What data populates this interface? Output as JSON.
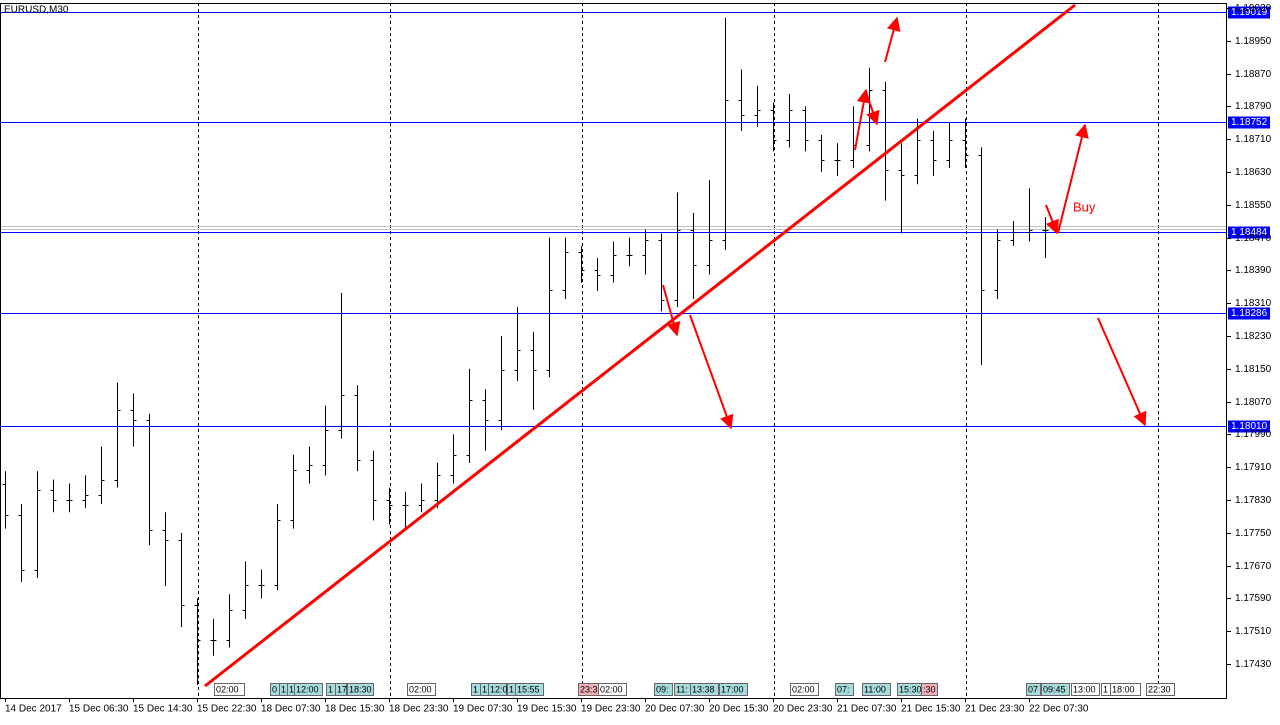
{
  "chart_data": {
    "type": "ohlc",
    "title": "EURUSD,M30",
    "categories": [
      "14 Dec 2017",
      null,
      null,
      null,
      "15 Dec 06:30",
      null,
      null,
      null,
      "15 Dec 14:30",
      null,
      null,
      null,
      "15 Dec 22:30",
      null,
      null,
      null,
      "18 Dec 07:30",
      null,
      null,
      null,
      "18 Dec 15:30",
      null,
      null,
      null,
      "18 Dec 23:30",
      null,
      null,
      null,
      "19 Dec 07:30",
      null,
      null,
      null,
      "19 Dec 15:30",
      null,
      null,
      null,
      "19 Dec 23:30",
      null,
      null,
      null,
      "20 Dec 07:30",
      null,
      null,
      null,
      "20 Dec 15:30",
      null,
      null,
      null,
      "20 Dec 23:30",
      null,
      null,
      null,
      "21 Dec 07:30",
      null,
      null,
      null,
      "21 Dec 15:30",
      null,
      null,
      null,
      "21 Dec 23:30",
      null,
      null,
      null,
      "22 Dec 07:30",
      null
    ],
    "open": [
      1.1787,
      1.17793,
      1.17659,
      1.17854,
      1.1783,
      1.1783,
      1.17842,
      1.17879,
      1.1805,
      1.18025,
      1.17757,
      1.17733,
      1.17574,
      1.17489,
      1.17489,
      1.17562,
      1.17623,
      1.17623,
      1.17781,
      1.17903,
      1.17915,
      1.18001,
      1.18086,
      1.17928,
      1.1783,
      1.17818,
      1.17818,
      1.1783,
      1.17891,
      1.1794,
      1.18074,
      1.18025,
      1.18147,
      1.18196,
      1.18147,
      1.18342,
      1.18435,
      1.18391,
      1.18379,
      1.18428,
      1.18428,
      1.18464,
      1.18318,
      1.18489,
      1.18403,
      1.18464,
      1.18806,
      1.18769,
      1.18781,
      1.18708,
      1.18781,
      1.18708,
      1.18659,
      1.18659,
      1.18696,
      1.1883,
      1.18635,
      1.18623,
      1.18708,
      1.18659,
      1.18708,
      1.18672,
      1.18342,
      1.18464,
      1.18484,
      1.18489
    ],
    "high": [
      1.179,
      1.1782,
      1.179,
      1.1788,
      1.1787,
      1.1789,
      1.1796,
      1.18116,
      1.1809,
      1.1804,
      1.178,
      1.1775,
      1.1759,
      1.1754,
      1.176,
      1.1768,
      1.1766,
      1.1782,
      1.1794,
      1.1796,
      1.1806,
      1.18335,
      1.1811,
      1.1795,
      1.1786,
      1.1785,
      1.1787,
      1.1792,
      1.1799,
      1.1815,
      1.181,
      1.1823,
      1.183,
      1.1824,
      1.1847,
      1.1847,
      1.1845,
      1.1842,
      1.1846,
      1.1847,
      1.1849,
      1.1848,
      1.1858,
      1.1853,
      1.1861,
      1.19006,
      1.1888,
      1.1884,
      1.188,
      1.1882,
      1.1879,
      1.1872,
      1.187,
      1.1879,
      1.18884,
      1.1885,
      1.187,
      1.1876,
      1.1873,
      1.1875,
      1.1876,
      1.1869,
      1.1849,
      1.1851,
      1.1859,
      1.1852
    ],
    "low": [
      1.1776,
      1.1763,
      1.1764,
      1.178,
      1.178,
      1.1781,
      1.1782,
      1.1786,
      1.1796,
      1.1772,
      1.1762,
      1.1752,
      1.17379,
      1.1745,
      1.1747,
      1.1754,
      1.1759,
      1.1761,
      1.1776,
      1.1787,
      1.1789,
      1.1798,
      1.179,
      1.1778,
      1.1777,
      1.1776,
      1.178,
      1.1781,
      1.1787,
      1.1792,
      1.1795,
      1.18,
      1.1812,
      1.1805,
      1.1813,
      1.1832,
      1.1836,
      1.1834,
      1.1836,
      1.184,
      1.1838,
      1.1829,
      1.183,
      1.1832,
      1.1838,
      1.1844,
      1.1873,
      1.1874,
      1.1868,
      1.1869,
      1.1868,
      1.1863,
      1.1862,
      1.1864,
      1.1868,
      1.1856,
      1.1848,
      1.186,
      1.1862,
      1.1864,
      1.1864,
      1.18159,
      1.1832,
      1.1845,
      1.1846,
      1.1842
    ],
    "close": [
      1.17793,
      1.17659,
      1.17854,
      1.1783,
      1.1783,
      1.17842,
      1.17879,
      1.1805,
      1.18025,
      1.17757,
      1.17733,
      1.17574,
      1.17489,
      1.17489,
      1.17562,
      1.17623,
      1.17623,
      1.17781,
      1.17903,
      1.17915,
      1.18001,
      1.18086,
      1.17928,
      1.1783,
      1.17818,
      1.17818,
      1.1783,
      1.17891,
      1.1794,
      1.18074,
      1.18025,
      1.18147,
      1.18196,
      1.18147,
      1.18342,
      1.18435,
      1.18391,
      1.18379,
      1.18428,
      1.18428,
      1.18464,
      1.18318,
      1.18489,
      1.18403,
      1.18464,
      1.18806,
      1.18769,
      1.18781,
      1.18708,
      1.18781,
      1.18708,
      1.18659,
      1.18659,
      1.18696,
      1.1883,
      1.18635,
      1.18623,
      1.18708,
      1.18659,
      1.18708,
      1.18672,
      1.18342,
      1.18464,
      1.18484,
      1.18489,
      1.18489
    ],
    "color": "#000000",
    "ylim": [
      1.17347,
      1.19042
    ],
    "yticks": [
      {
        "value": 1.1903,
        "label": "1.19030"
      },
      {
        "value": 1.1895,
        "label": "1.18950"
      },
      {
        "value": 1.1887,
        "label": "1.18870"
      },
      {
        "value": 1.1879,
        "label": "1.18790"
      },
      {
        "value": 1.1871,
        "label": "1.18710"
      },
      {
        "value": 1.1863,
        "label": "1.18630"
      },
      {
        "value": 1.1855,
        "label": "1.18550"
      },
      {
        "value": 1.1847,
        "label": "1.18470"
      },
      {
        "value": 1.1839,
        "label": "1.18390"
      },
      {
        "value": 1.1831,
        "label": "1.18310"
      },
      {
        "value": 1.1823,
        "label": "1.18230"
      },
      {
        "value": 1.1815,
        "label": "1.18150"
      },
      {
        "value": 1.1807,
        "label": "1.18070"
      },
      {
        "value": 1.1799,
        "label": "1.17990"
      },
      {
        "value": 1.1791,
        "label": "1.17910"
      },
      {
        "value": 1.1783,
        "label": "1.17830"
      },
      {
        "value": 1.1775,
        "label": "1.17750"
      },
      {
        "value": 1.1767,
        "label": "1.17670"
      },
      {
        "value": 1.1759,
        "label": "1.17590"
      },
      {
        "value": 1.1751,
        "label": "1.17510"
      },
      {
        "value": 1.1743,
        "label": "1.17430"
      }
    ],
    "hlines": [
      1.19019,
      1.18752,
      1.18484,
      1.18286,
      {
        "value": 1.1801,
        "label": "1.18010"
      }
    ],
    "hline_color": "#0000ff",
    "annotations": [
      "Buy"
    ],
    "event_tags": [
      "02:00",
      "0",
      "1",
      "1",
      "12:00",
      "1",
      "17",
      "18:30",
      "02:00",
      "1",
      "1",
      "12:0",
      "1",
      "15:55",
      "23:3",
      "02:00",
      "09:",
      "11:",
      "13:38",
      "17:00",
      "02:00",
      "07:",
      "11:00",
      "15:30",
      ":30",
      "07",
      "09:45",
      "13:00",
      "1",
      "18:00",
      "22:30"
    ]
  }
}
